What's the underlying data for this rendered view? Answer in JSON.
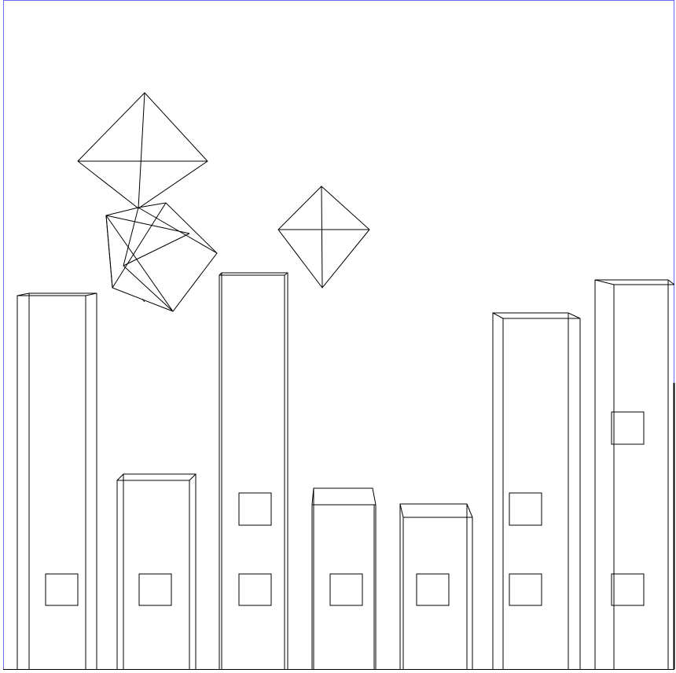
{
  "scene": {
    "name": "wireframe-city",
    "background": "#ffffff",
    "line_color": "#000000",
    "frame_color": "#6a6af0",
    "buildings": [
      {
        "id": "building-1",
        "windows": 1
      },
      {
        "id": "building-2",
        "windows": 1
      },
      {
        "id": "building-3",
        "windows": 2
      },
      {
        "id": "building-4",
        "windows": 1
      },
      {
        "id": "building-5",
        "windows": 1
      },
      {
        "id": "building-6",
        "windows": 2
      },
      {
        "id": "building-7",
        "windows": 2
      }
    ],
    "floating_objects": [
      {
        "id": "octahedron-top",
        "shape": "octahedron"
      },
      {
        "id": "tumbling-octahedron",
        "shape": "octahedron"
      },
      {
        "id": "octahedron-right",
        "shape": "octahedron"
      }
    ]
  }
}
